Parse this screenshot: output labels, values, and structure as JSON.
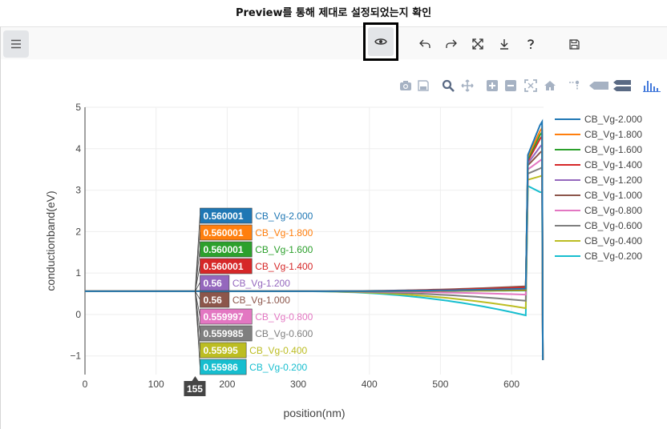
{
  "caption": "Preview를 통해 제대로 설정되었는지 확인",
  "toolbar": {
    "menu_icon": "hamburger-menu-icon",
    "buttons": [
      "preview-eye-icon",
      "undo-icon",
      "redo-icon",
      "fullscreen-icon",
      "download-icon",
      "help-icon",
      "save-icon"
    ]
  },
  "modebar": [
    "camera-icon",
    "save-icon",
    "zoom-icon",
    "pan-icon",
    "zoom-in-icon",
    "zoom-out-icon",
    "autoscale-icon",
    "home-icon",
    "spike-lines-icon",
    "hover-closest-icon",
    "hover-compare-icon",
    "plotly-logo-icon"
  ],
  "colors": {
    "accent": "#1f77b4",
    "highlight_border": "#000000",
    "series": [
      "#1f77b4",
      "#ff7f0e",
      "#2ca02c",
      "#d62728",
      "#9467bd",
      "#8c564b",
      "#e377c2",
      "#7f7f7f",
      "#bcbd22",
      "#17becf"
    ]
  },
  "chart_data": {
    "type": "line",
    "xlabel": "position(nm)",
    "ylabel": "conductionband(eV)",
    "xlim": [
      0,
      645
    ],
    "ylim": [
      -1.45,
      5
    ],
    "xticks": [
      "0",
      "100",
      "200",
      "300",
      "400",
      "500",
      "600"
    ],
    "yticks": [
      "5",
      "4",
      "3",
      "2",
      "1",
      "0",
      "−1"
    ],
    "legend_position": "right",
    "hover": {
      "x": "155",
      "values": [
        "0.560001",
        "0.560001",
        "0.560001",
        "0.560001",
        "0.56",
        "0.56",
        "0.559997",
        "0.559985",
        "0.55995",
        "0.55986"
      ]
    },
    "series": [
      {
        "name": "CB_Vg-2.000",
        "end_dip": 0.62,
        "peak": 3.85,
        "top": 4.65
      },
      {
        "name": "CB_Vg-1.800",
        "end_dip": 0.6,
        "peak": 3.8,
        "top": 4.5
      },
      {
        "name": "CB_Vg-1.600",
        "end_dip": 0.58,
        "peak": 3.75,
        "top": 4.4
      },
      {
        "name": "CB_Vg-1.400",
        "end_dip": 0.65,
        "peak": 3.7,
        "top": 4.3
      },
      {
        "name": "CB_Vg-1.200",
        "end_dip": 0.6,
        "peak": 3.65,
        "top": 4.1
      },
      {
        "name": "CB_Vg-1.000",
        "end_dip": 0.68,
        "peak": 3.6,
        "top": 3.95
      },
      {
        "name": "CB_Vg-0.800",
        "end_dip": 0.48,
        "peak": 3.5,
        "top": 3.75
      },
      {
        "name": "CB_Vg-0.600",
        "end_dip": 0.33,
        "peak": 3.4,
        "top": 3.55
      },
      {
        "name": "CB_Vg-0.400",
        "end_dip": 0.15,
        "peak": 3.25,
        "top": 3.35
      },
      {
        "name": "CB_Vg-0.200",
        "end_dip": -0.02,
        "peak": 3.1,
        "top": 2.95
      }
    ]
  }
}
